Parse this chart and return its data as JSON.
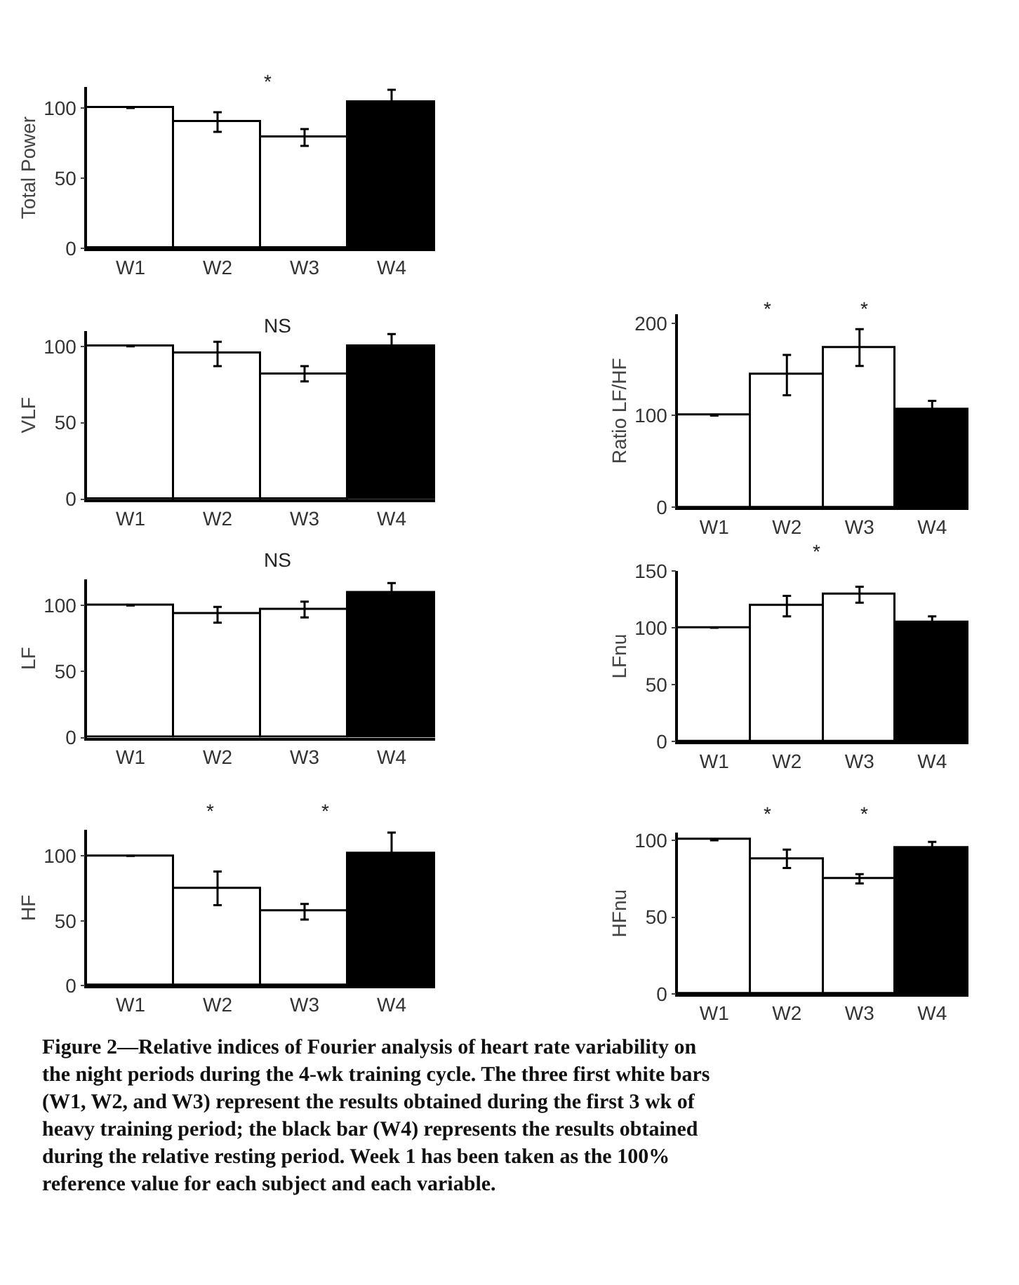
{
  "chart_data": [
    {
      "type": "bar",
      "ylabel": "Total Power",
      "categories": [
        "W1",
        "W2",
        "W3",
        "W4"
      ],
      "values": [
        100,
        90,
        79,
        104
      ],
      "errors": [
        null,
        7,
        6,
        9
      ],
      "colors": [
        "#ffffff",
        "#ffffff",
        "#ffffff",
        "#000000"
      ],
      "ylim": [
        0,
        115
      ],
      "yticks": [
        0,
        50,
        100
      ],
      "annotations": [
        "*"
      ]
    },
    {
      "type": "bar",
      "ylabel": "VLF",
      "categories": [
        "W1",
        "W2",
        "W3",
        "W4"
      ],
      "values": [
        100,
        95,
        82,
        100
      ],
      "errors": [
        null,
        8,
        5,
        8
      ],
      "colors": [
        "#ffffff",
        "#ffffff",
        "#ffffff",
        "#000000"
      ],
      "ylim": [
        0,
        110
      ],
      "yticks": [
        0,
        50,
        100
      ],
      "annotations": [
        "NS"
      ]
    },
    {
      "type": "bar",
      "ylabel": "LF",
      "categories": [
        "W1",
        "W2",
        "W3",
        "W4"
      ],
      "values": [
        100,
        93,
        97,
        109
      ],
      "errors": [
        null,
        6,
        6,
        8
      ],
      "colors": [
        "#ffffff",
        "#ffffff",
        "#ffffff",
        "#000000"
      ],
      "ylim": [
        0,
        120
      ],
      "yticks": [
        0,
        50,
        100
      ],
      "annotations": [
        "NS"
      ]
    },
    {
      "type": "bar",
      "ylabel": "HF",
      "categories": [
        "W1",
        "W2",
        "W3",
        "W4"
      ],
      "values": [
        100,
        75,
        57,
        102
      ],
      "errors": [
        null,
        13,
        6,
        16
      ],
      "colors": [
        "#ffffff",
        "#ffffff",
        "#ffffff",
        "#000000"
      ],
      "ylim": [
        0,
        120
      ],
      "yticks": [
        0,
        50,
        100
      ],
      "annotations": [
        "*",
        "*"
      ]
    },
    {
      "type": "bar",
      "ylabel": "Ratio LF/HF",
      "categories": [
        "W1",
        "W2",
        "W3",
        "W4"
      ],
      "values": [
        100,
        144,
        174,
        106
      ],
      "errors": [
        null,
        22,
        20,
        10
      ],
      "colors": [
        "#ffffff",
        "#ffffff",
        "#ffffff",
        "#000000"
      ],
      "ylim": [
        0,
        210
      ],
      "yticks": [
        0,
        100,
        200
      ],
      "annotations": [
        "*",
        "*"
      ]
    },
    {
      "type": "bar",
      "ylabel": "LFnu",
      "categories": [
        "W1",
        "W2",
        "W3",
        "W4"
      ],
      "values": [
        100,
        119,
        129,
        105
      ],
      "errors": [
        null,
        9,
        7,
        5
      ],
      "colors": [
        "#ffffff",
        "#ffffff",
        "#ffffff",
        "#000000"
      ],
      "ylim": [
        0,
        150
      ],
      "yticks": [
        0,
        50,
        100,
        150
      ],
      "annotations": [
        "*"
      ]
    },
    {
      "type": "bar",
      "ylabel": "HFnu",
      "categories": [
        "W1",
        "W2",
        "W3",
        "W4"
      ],
      "values": [
        100,
        88,
        75,
        95
      ],
      "errors": [
        null,
        6,
        3,
        4
      ],
      "colors": [
        "#ffffff",
        "#ffffff",
        "#ffffff",
        "#000000"
      ],
      "ylim": [
        0,
        105
      ],
      "yticks": [
        0,
        50,
        100
      ],
      "annotations": [
        "*",
        "*"
      ]
    },
    {
      "type": "other",
      "annotations": [
        "Figure 2—Relative indices of Fourier analysis of heart rate variability on the night periods during the 4-wk training cycle. The three first white bars (W1, W2, and W3) represent the results obtained during the first 3 wk of heavy training period; the black bar (W4) represents the results obtained during the relative resting period. Week 1 has been taken as the 100% reference value for each subject and each variable."
      ]
    }
  ]
}
